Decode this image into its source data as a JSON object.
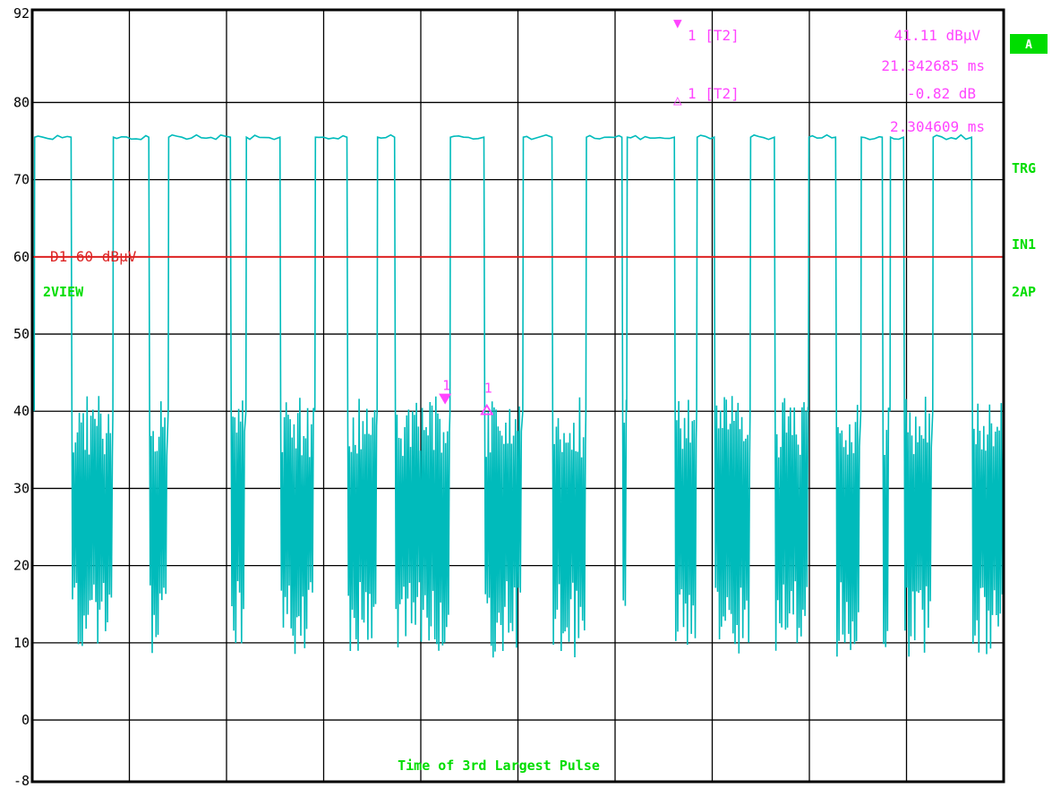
{
  "chart_data": {
    "type": "line",
    "ylim": [
      -8,
      92
    ],
    "y_ticks": [
      "92",
      "80",
      "70",
      "60",
      "50",
      "40",
      "30",
      "20",
      "10",
      "0",
      "-8"
    ],
    "x_divisions": 10,
    "grid": true,
    "display_line": {
      "value": 60,
      "label": "D1 60 dBμV",
      "color": "#dd2222"
    },
    "trace_color": "#00bbbb",
    "trace_high_level": 75.5,
    "pulses": [
      [
        0.2,
        4.0
      ],
      [
        8.3,
        12.0
      ],
      [
        14.0,
        20.4
      ],
      [
        22.0,
        25.5
      ],
      [
        29.1,
        32.4
      ],
      [
        35.5,
        37.3
      ],
      [
        43.0,
        46.5
      ],
      [
        50.5,
        53.5
      ],
      [
        57.0,
        60.7
      ],
      [
        61.2,
        66.1
      ],
      [
        68.4,
        70.2
      ],
      [
        73.9,
        76.4
      ],
      [
        79.9,
        82.7
      ],
      [
        85.3,
        87.5
      ],
      [
        88.3,
        89.7
      ],
      [
        92.7,
        96.7
      ]
    ],
    "markers": [
      {
        "id": "1",
        "type": "marker",
        "x": 42.5,
        "y": 41.11
      },
      {
        "id": "1",
        "type": "delta",
        "x": 46.8,
        "y": 40.3
      }
    ],
    "colors": {
      "marker": "#ff44ff",
      "status_text": "#00dd00",
      "badge_bg": "#00dd00"
    }
  },
  "marker1": {
    "label": "1 [T2]",
    "level": "41.11 dBμV",
    "time": "21.342685 ms"
  },
  "delta1": {
    "label": "1 [T2]",
    "level": "-0.82 dB",
    "time": "2.304609 ms"
  },
  "marker_tags": {
    "marker": "1",
    "delta": "1"
  },
  "left_labels": {
    "view": "2VIEW"
  },
  "right_labels": {
    "badge": "A",
    "trg": "TRG",
    "in1": "IN1",
    "ap": "2AP"
  },
  "bottom_title": "Time of 3rd Largest Pulse"
}
